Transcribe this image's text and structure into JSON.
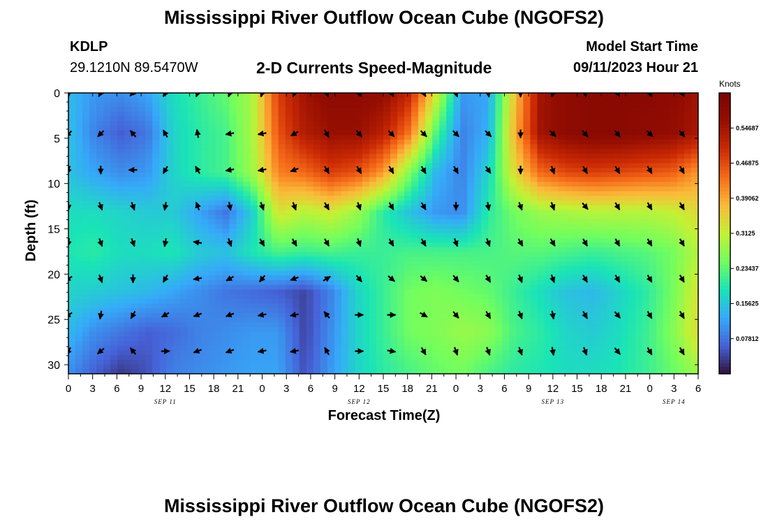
{
  "header": {
    "title": "Mississippi River Outflow Ocean Cube (NGOFS2)",
    "title_repeat": "Mississippi River Outflow Ocean Cube (NGOFS2)",
    "station": "KDLP",
    "coords": "29.1210N  89.5470W",
    "model_start_label": "Model Start Time",
    "model_start_value": "09/11/2023 Hour 21"
  },
  "chart_data": {
    "type": "heatmap",
    "title": "2-D Currents Speed-Magnitude",
    "xlabel": "Forecast Time(Z)",
    "ylabel": "Depth (ft)",
    "colorbar_label": "Knots",
    "x_range_hours": [
      0,
      78
    ],
    "y_range_ft": [
      0,
      31
    ],
    "y_inverted": true,
    "x_tick_labels": [
      "0",
      "3",
      "6",
      "9",
      "12",
      "15",
      "18",
      "21",
      "0",
      "3",
      "6",
      "9",
      "12",
      "15",
      "18",
      "21",
      "0",
      "3",
      "6",
      "9",
      "12",
      "15",
      "18",
      "21",
      "0",
      "3",
      "6"
    ],
    "day_labels": [
      {
        "label": "SEP 11",
        "hour": 12
      },
      {
        "label": "SEP 12",
        "hour": 36
      },
      {
        "label": "SEP 13",
        "hour": 60
      },
      {
        "label": "SEP 14",
        "hour": 75
      }
    ],
    "y_ticks": [
      "0",
      "5",
      "10",
      "15",
      "20",
      "25",
      "30"
    ],
    "colorbar_ticks": [
      "0.07812",
      "0.15625",
      "0.23437",
      "0.3125",
      "0.39062",
      "0.46875",
      "0.54687"
    ],
    "colorbar_range": [
      0,
      0.625
    ],
    "colors": {
      "low": "#30123b",
      "mid": "#a4fc3c",
      "high": "#7a0403"
    },
    "grid_x_hours": [
      0,
      3.25,
      6.5,
      9.75,
      13,
      16.25,
      19.5,
      22.75,
      26,
      29.25,
      32.5,
      35.75,
      39,
      42.25,
      45.5,
      48.75,
      52,
      55.25,
      58.5,
      61.75,
      65,
      68.25,
      71.5,
      74.75,
      78
    ],
    "grid_y_ft": [
      0,
      4.4,
      8.8,
      13.2,
      17.6,
      22.0,
      26.4,
      31
    ],
    "speed_grid_knots": [
      [
        0.14,
        0.11,
        0.1,
        0.12,
        0.18,
        0.21,
        0.24,
        0.29,
        0.48,
        0.55,
        0.58,
        0.58,
        0.57,
        0.51,
        0.33,
        0.11,
        0.12,
        0.36,
        0.55,
        0.58,
        0.59,
        0.59,
        0.59,
        0.58,
        0.55
      ],
      [
        0.15,
        0.09,
        0.06,
        0.08,
        0.17,
        0.2,
        0.22,
        0.29,
        0.46,
        0.53,
        0.56,
        0.56,
        0.52,
        0.43,
        0.23,
        0.09,
        0.13,
        0.38,
        0.55,
        0.58,
        0.59,
        0.59,
        0.58,
        0.57,
        0.54
      ],
      [
        0.15,
        0.12,
        0.1,
        0.11,
        0.17,
        0.2,
        0.22,
        0.28,
        0.42,
        0.44,
        0.48,
        0.46,
        0.4,
        0.26,
        0.14,
        0.09,
        0.17,
        0.34,
        0.44,
        0.47,
        0.48,
        0.47,
        0.46,
        0.45,
        0.4
      ],
      [
        0.18,
        0.18,
        0.17,
        0.16,
        0.16,
        0.12,
        0.08,
        0.16,
        0.33,
        0.3,
        0.32,
        0.28,
        0.2,
        0.15,
        0.11,
        0.1,
        0.2,
        0.25,
        0.28,
        0.29,
        0.3,
        0.3,
        0.3,
        0.31,
        0.34
      ],
      [
        0.19,
        0.2,
        0.18,
        0.18,
        0.19,
        0.16,
        0.15,
        0.19,
        0.22,
        0.21,
        0.22,
        0.21,
        0.21,
        0.22,
        0.22,
        0.22,
        0.22,
        0.23,
        0.23,
        0.22,
        0.21,
        0.22,
        0.23,
        0.25,
        0.3
      ],
      [
        0.17,
        0.16,
        0.15,
        0.14,
        0.12,
        0.1,
        0.08,
        0.07,
        0.06,
        0.04,
        0.09,
        0.17,
        0.21,
        0.25,
        0.26,
        0.25,
        0.24,
        0.21,
        0.18,
        0.15,
        0.14,
        0.17,
        0.2,
        0.25,
        0.33
      ],
      [
        0.14,
        0.1,
        0.08,
        0.06,
        0.07,
        0.09,
        0.1,
        0.11,
        0.11,
        0.04,
        0.1,
        0.17,
        0.21,
        0.25,
        0.26,
        0.28,
        0.27,
        0.22,
        0.2,
        0.17,
        0.16,
        0.18,
        0.21,
        0.26,
        0.34
      ],
      [
        0.1,
        0.06,
        0.03,
        0.05,
        0.09,
        0.1,
        0.11,
        0.12,
        0.12,
        0.05,
        0.11,
        0.17,
        0.2,
        0.22,
        0.24,
        0.25,
        0.22,
        0.2,
        0.19,
        0.18,
        0.18,
        0.19,
        0.21,
        0.24,
        0.28
      ]
    ],
    "arrow_x_hours": [
      0,
      4,
      8,
      12,
      16,
      20,
      24,
      28,
      32,
      36,
      40,
      44,
      48,
      52,
      56,
      60,
      64,
      68,
      72,
      76
    ],
    "arrow_y_ft": [
      0,
      4.5,
      8.5,
      12.5,
      16.5,
      20.5,
      24.5,
      28.5
    ],
    "arrow_direction_deg": [
      [
        180,
        210,
        225,
        210,
        200,
        200,
        200,
        200,
        160,
        150,
        150,
        150,
        160,
        170,
        180,
        200,
        170,
        150,
        150,
        150
      ],
      [
        230,
        225,
        320,
        330,
        350,
        260,
        260,
        240,
        150,
        140,
        135,
        135,
        135,
        135,
        180,
        135,
        140,
        140,
        135,
        140
      ],
      [
        200,
        180,
        270,
        210,
        330,
        260,
        260,
        250,
        150,
        150,
        150,
        150,
        150,
        145,
        180,
        160,
        150,
        150,
        150,
        150
      ],
      [
        180,
        160,
        160,
        190,
        340,
        170,
        160,
        160,
        150,
        160,
        150,
        150,
        180,
        170,
        160,
        160,
        140,
        150,
        150,
        150
      ],
      [
        190,
        160,
        160,
        190,
        280,
        160,
        150,
        150,
        150,
        160,
        150,
        150,
        160,
        160,
        150,
        150,
        150,
        150,
        150,
        150
      ],
      [
        240,
        160,
        180,
        210,
        260,
        240,
        220,
        250,
        60,
        140,
        130,
        130,
        140,
        150,
        160,
        160,
        150,
        150,
        150,
        150
      ],
      [
        240,
        190,
        210,
        240,
        250,
        250,
        260,
        260,
        320,
        90,
        90,
        120,
        140,
        150,
        160,
        170,
        150,
        140,
        150,
        150
      ],
      [
        210,
        230,
        320,
        90,
        250,
        250,
        260,
        260,
        330,
        90,
        100,
        150,
        160,
        160,
        160,
        170,
        160,
        140,
        150,
        150
      ]
    ]
  }
}
